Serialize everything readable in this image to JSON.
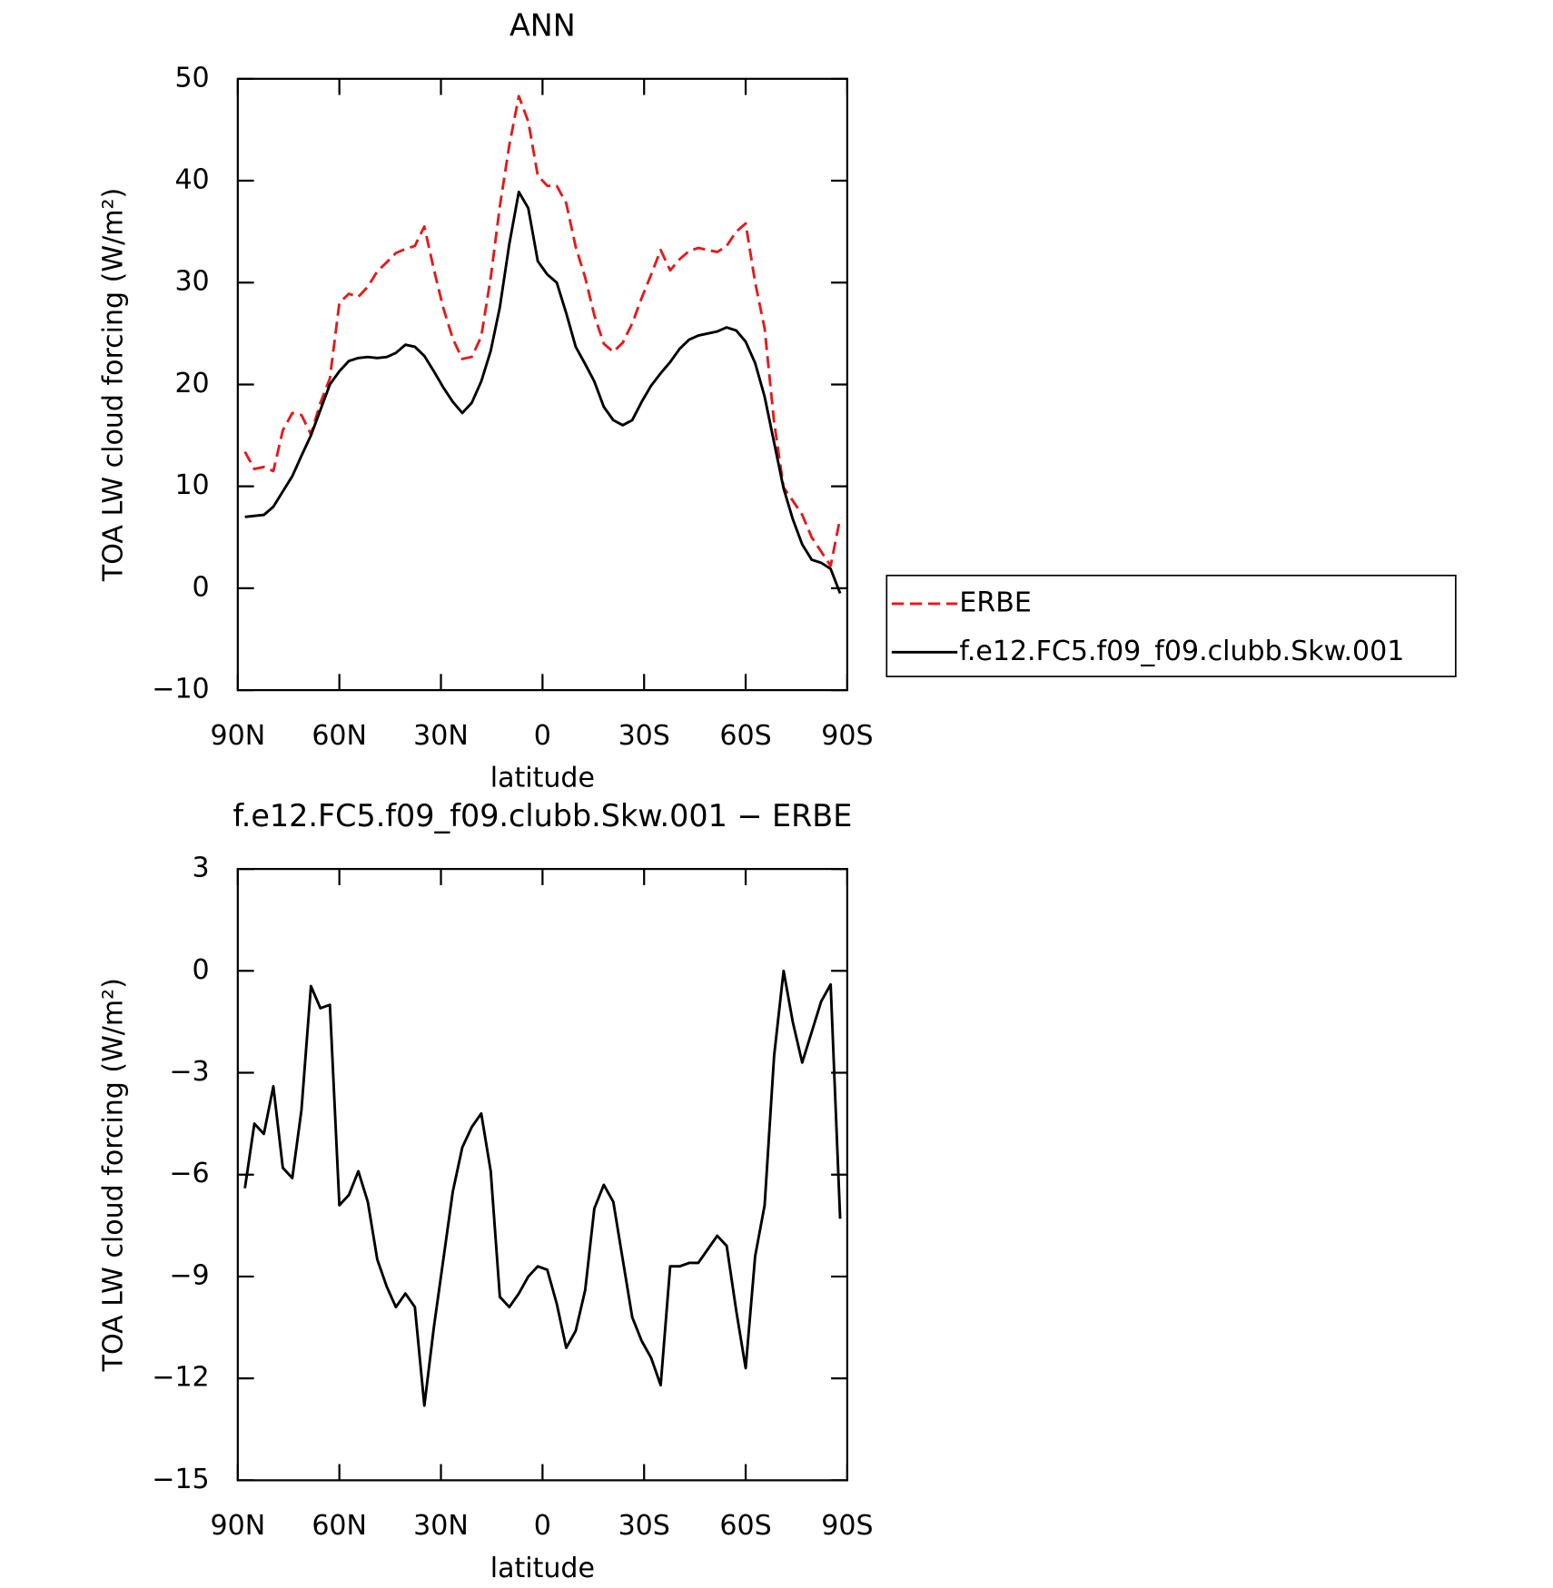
{
  "chart_data": [
    {
      "type": "line",
      "title": "ANN",
      "xlabel": "latitude",
      "ylabel": "TOA LW cloud forcing (W/m²)",
      "xlim": [
        90,
        -90
      ],
      "xticks": [
        {
          "value": 90,
          "label": "90N"
        },
        {
          "value": 60,
          "label": "60N"
        },
        {
          "value": 30,
          "label": "30N"
        },
        0,
        {
          "value": -30,
          "label": "30S"
        },
        {
          "value": -60,
          "label": "60S"
        },
        {
          "value": -90,
          "label": "90S"
        }
      ],
      "ylim": [
        -10,
        50
      ],
      "yticks": [
        {
          "value": -10,
          "label": "−10"
        },
        0,
        10,
        20,
        30,
        40,
        50
      ],
      "legend": "right",
      "x": [
        87.9,
        85.1,
        82.3,
        79.5,
        76.7,
        73.9,
        71.2,
        68.4,
        65.6,
        62.8,
        60.0,
        57.2,
        54.4,
        51.6,
        48.8,
        46.0,
        43.3,
        40.5,
        37.7,
        34.9,
        32.1,
        29.3,
        26.5,
        23.7,
        20.9,
        18.1,
        15.3,
        12.6,
        9.8,
        7.0,
        4.2,
        1.4,
        -1.4,
        -4.2,
        -7.0,
        -9.8,
        -12.6,
        -15.3,
        -18.1,
        -20.9,
        -23.7,
        -26.5,
        -29.3,
        -32.1,
        -34.9,
        -37.7,
        -40.5,
        -43.3,
        -46.0,
        -48.8,
        -51.6,
        -54.4,
        -57.2,
        -60.0,
        -62.8,
        -65.6,
        -68.4,
        -71.2,
        -73.9,
        -76.7,
        -79.5,
        -82.3,
        -85.1,
        -87.9
      ],
      "series": [
        {
          "name": "ERBE",
          "color": "#e41a1c",
          "dash": true,
          "values": [
            13.4,
            11.7,
            11.9,
            11.5,
            15.5,
            17.2,
            17.0,
            15.1,
            18.2,
            20.6,
            28.0,
            28.9,
            28.6,
            29.6,
            31.1,
            32.0,
            32.9,
            33.3,
            33.6,
            35.5,
            31.3,
            27.5,
            24.5,
            22.5,
            22.7,
            24.7,
            30.5,
            37.5,
            43.5,
            48.3,
            45.8,
            40.5,
            39.5,
            39.5,
            37.8,
            33.5,
            30.5,
            26.8,
            24.0,
            23.2,
            24.1,
            26.0,
            28.5,
            30.8,
            33.2,
            31.2,
            32.3,
            33.1,
            33.4,
            33.2,
            33.0,
            33.6,
            35.0,
            35.8,
            30.0,
            25.5,
            16.3,
            9.9,
            8.6,
            7.2,
            5.0,
            3.6,
            2.2,
            6.9
          ]
        },
        {
          "name": "f.e12.FC5.f09_f09.clubb.Skw.001",
          "color": "#000000",
          "dash": false,
          "values": [
            7.0,
            7.1,
            7.2,
            8.0,
            9.5,
            11.0,
            13.0,
            15.0,
            17.5,
            20.0,
            21.3,
            22.3,
            22.6,
            22.7,
            22.6,
            22.7,
            23.1,
            23.9,
            23.7,
            22.8,
            21.3,
            19.7,
            18.3,
            17.2,
            18.2,
            20.3,
            23.3,
            27.6,
            33.8,
            38.9,
            37.3,
            32.1,
            30.8,
            30.0,
            27.0,
            23.7,
            22.0,
            20.3,
            17.8,
            16.5,
            16.0,
            16.5,
            18.3,
            19.9,
            21.1,
            22.2,
            23.5,
            24.4,
            24.8,
            25.0,
            25.2,
            25.6,
            25.3,
            24.2,
            22.1,
            18.8,
            14.3,
            9.8,
            6.8,
            4.3,
            2.8,
            2.5,
            1.9,
            -0.5
          ]
        }
      ]
    },
    {
      "type": "line",
      "title": "f.e12.FC5.f09_f09.clubb.Skw.001 − ERBE",
      "xlabel": "latitude",
      "ylabel": "TOA LW cloud forcing (W/m²)",
      "xlim": [
        90,
        -90
      ],
      "xticks": [
        {
          "value": 90,
          "label": "90N"
        },
        {
          "value": 60,
          "label": "60N"
        },
        {
          "value": 30,
          "label": "30N"
        },
        0,
        {
          "value": -30,
          "label": "30S"
        },
        {
          "value": -60,
          "label": "60S"
        },
        {
          "value": -90,
          "label": "90S"
        }
      ],
      "ylim": [
        -15,
        3
      ],
      "yticks": [
        {
          "value": -15,
          "label": "−15"
        },
        {
          "value": -12,
          "label": "−12"
        },
        {
          "value": -9,
          "label": "−9"
        },
        {
          "value": -6,
          "label": "−6"
        },
        {
          "value": -3,
          "label": "−3"
        },
        0,
        3
      ],
      "x": [
        87.9,
        85.1,
        82.3,
        79.5,
        76.7,
        73.9,
        71.2,
        68.4,
        65.6,
        62.8,
        60.0,
        57.2,
        54.4,
        51.6,
        48.8,
        46.0,
        43.3,
        40.5,
        37.7,
        34.9,
        32.1,
        29.3,
        26.5,
        23.7,
        20.9,
        18.1,
        15.3,
        12.6,
        9.8,
        7.0,
        4.2,
        1.4,
        -1.4,
        -4.2,
        -7.0,
        -9.8,
        -12.6,
        -15.3,
        -18.1,
        -20.9,
        -23.7,
        -26.5,
        -29.3,
        -32.1,
        -34.9,
        -37.7,
        -40.5,
        -43.3,
        -46.0,
        -48.8,
        -51.6,
        -54.4,
        -57.2,
        -60.0,
        -62.8,
        -65.6,
        -68.4,
        -71.2,
        -73.9,
        -76.7,
        -79.5,
        -82.3,
        -85.1,
        -87.9
      ],
      "series": [
        {
          "color": "#000000",
          "dash": false,
          "values": [
            -6.4,
            -4.5,
            -4.8,
            -3.4,
            -5.8,
            -6.1,
            -4.1,
            -0.45,
            -1.1,
            -1.0,
            -6.9,
            -6.6,
            -5.9,
            -6.8,
            -8.5,
            -9.3,
            -9.9,
            -9.5,
            -9.9,
            -12.8,
            -10.5,
            -8.5,
            -6.5,
            -5.2,
            -4.6,
            -4.2,
            -5.9,
            -9.6,
            -9.9,
            -9.5,
            -9.0,
            -8.7,
            -8.8,
            -9.8,
            -11.1,
            -10.6,
            -9.4,
            -7.0,
            -6.3,
            -6.8,
            -8.5,
            -10.2,
            -10.9,
            -11.4,
            -12.2,
            -8.7,
            -8.7,
            -8.6,
            -8.6,
            -8.2,
            -7.8,
            -8.1,
            -10.0,
            -11.7,
            -8.4,
            -6.9,
            -2.5,
            0.0,
            -1.5,
            -2.7,
            -1.8,
            -0.9,
            -0.4,
            -7.3
          ]
        }
      ]
    }
  ]
}
